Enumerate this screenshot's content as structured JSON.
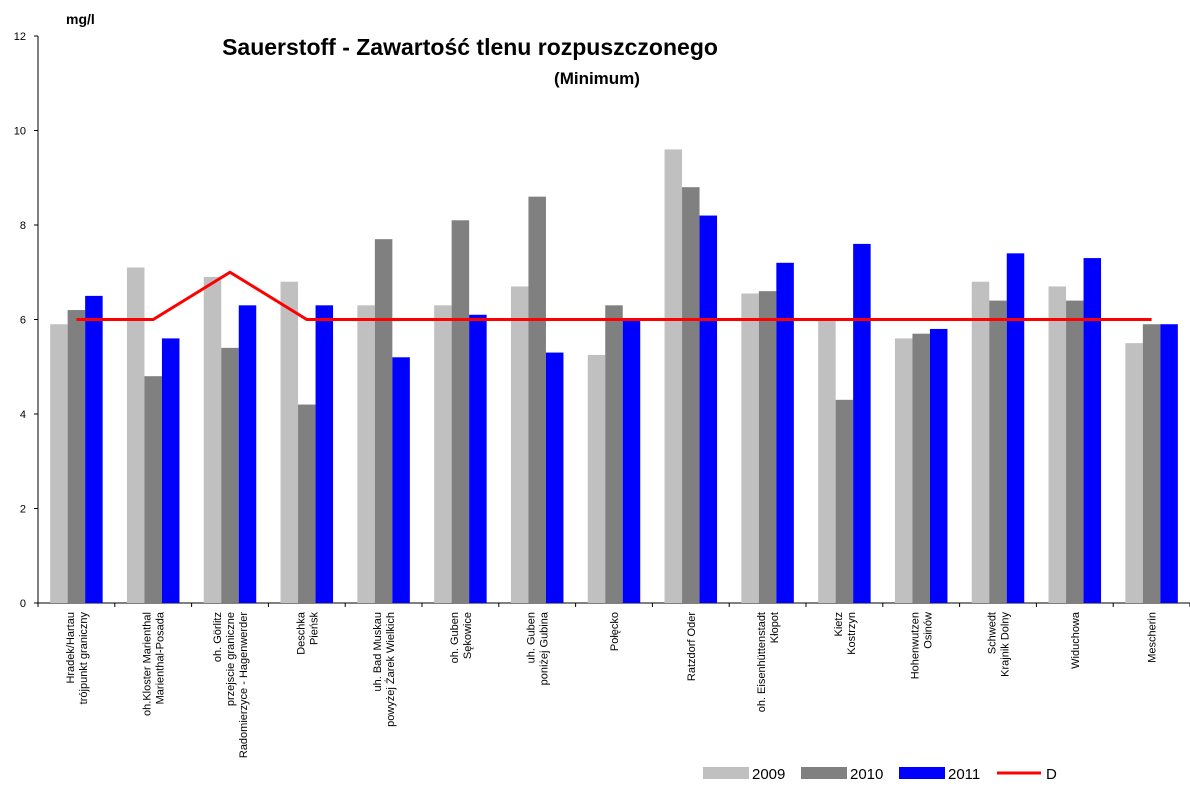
{
  "chart_data": {
    "type": "bar",
    "title": "Sauerstoff - Zawartość tlenu rozpuszczonego",
    "subtitle": "(Minimum)",
    "y_label": "mg/l",
    "categories": [
      [
        "Hradek/Hartau",
        "trójpunkt graniczny"
      ],
      [
        "oh.Kloster Marienthal",
        "Marienthal-Posada"
      ],
      [
        "oh. Görlitz",
        "przejscie graniczne",
        "Radomierzyce - Hagenwerder"
      ],
      [
        "Deschka",
        "Pieńsk"
      ],
      [
        "uh. Bad Muskau",
        "powyżej Żarek Wielkich"
      ],
      [
        "oh. Guben",
        "Sękowice"
      ],
      [
        "uh. Guben",
        "poniżej Gubina"
      ],
      [
        "Połęcko"
      ],
      [
        "Ratzdorf Oder"
      ],
      [
        "oh. Eisenhüttenstadt",
        "Kłopot"
      ],
      [
        "Kietz",
        "Kostrzyn"
      ],
      [
        "Hohenwutzen",
        "Osinów"
      ],
      [
        "Schwedt",
        "Krajnik Dolny"
      ],
      [
        "Widuchowa"
      ],
      [
        "Mescherin"
      ]
    ],
    "series": [
      {
        "name": "2009",
        "color": "#c0c0c0",
        "values": [
          5.9,
          7.1,
          6.9,
          6.8,
          6.3,
          6.3,
          6.7,
          5.25,
          9.6,
          6.55,
          6.0,
          5.6,
          6.8,
          6.7,
          5.5
        ]
      },
      {
        "name": "2010",
        "color": "#808080",
        "values": [
          6.2,
          4.8,
          5.4,
          4.2,
          7.7,
          8.1,
          8.6,
          6.3,
          8.8,
          6.6,
          4.3,
          5.7,
          6.4,
          6.4,
          5.9
        ]
      },
      {
        "name": "2011",
        "color": "#0000ff",
        "values": [
          6.5,
          5.6,
          6.3,
          6.3,
          5.2,
          6.1,
          5.3,
          6.0,
          8.2,
          7.2,
          7.6,
          5.8,
          7.4,
          7.3,
          5.9
        ]
      },
      {
        "name": "D",
        "color": "#ff0000",
        "type": "line",
        "values": [
          6,
          6,
          7,
          6,
          6,
          6,
          6,
          6,
          6,
          6,
          6,
          6,
          6,
          6,
          6
        ]
      }
    ],
    "ylim": [
      0,
      12
    ],
    "yticks": [
      0,
      2,
      4,
      6,
      8,
      10,
      12
    ],
    "legend": "bottom-right"
  }
}
